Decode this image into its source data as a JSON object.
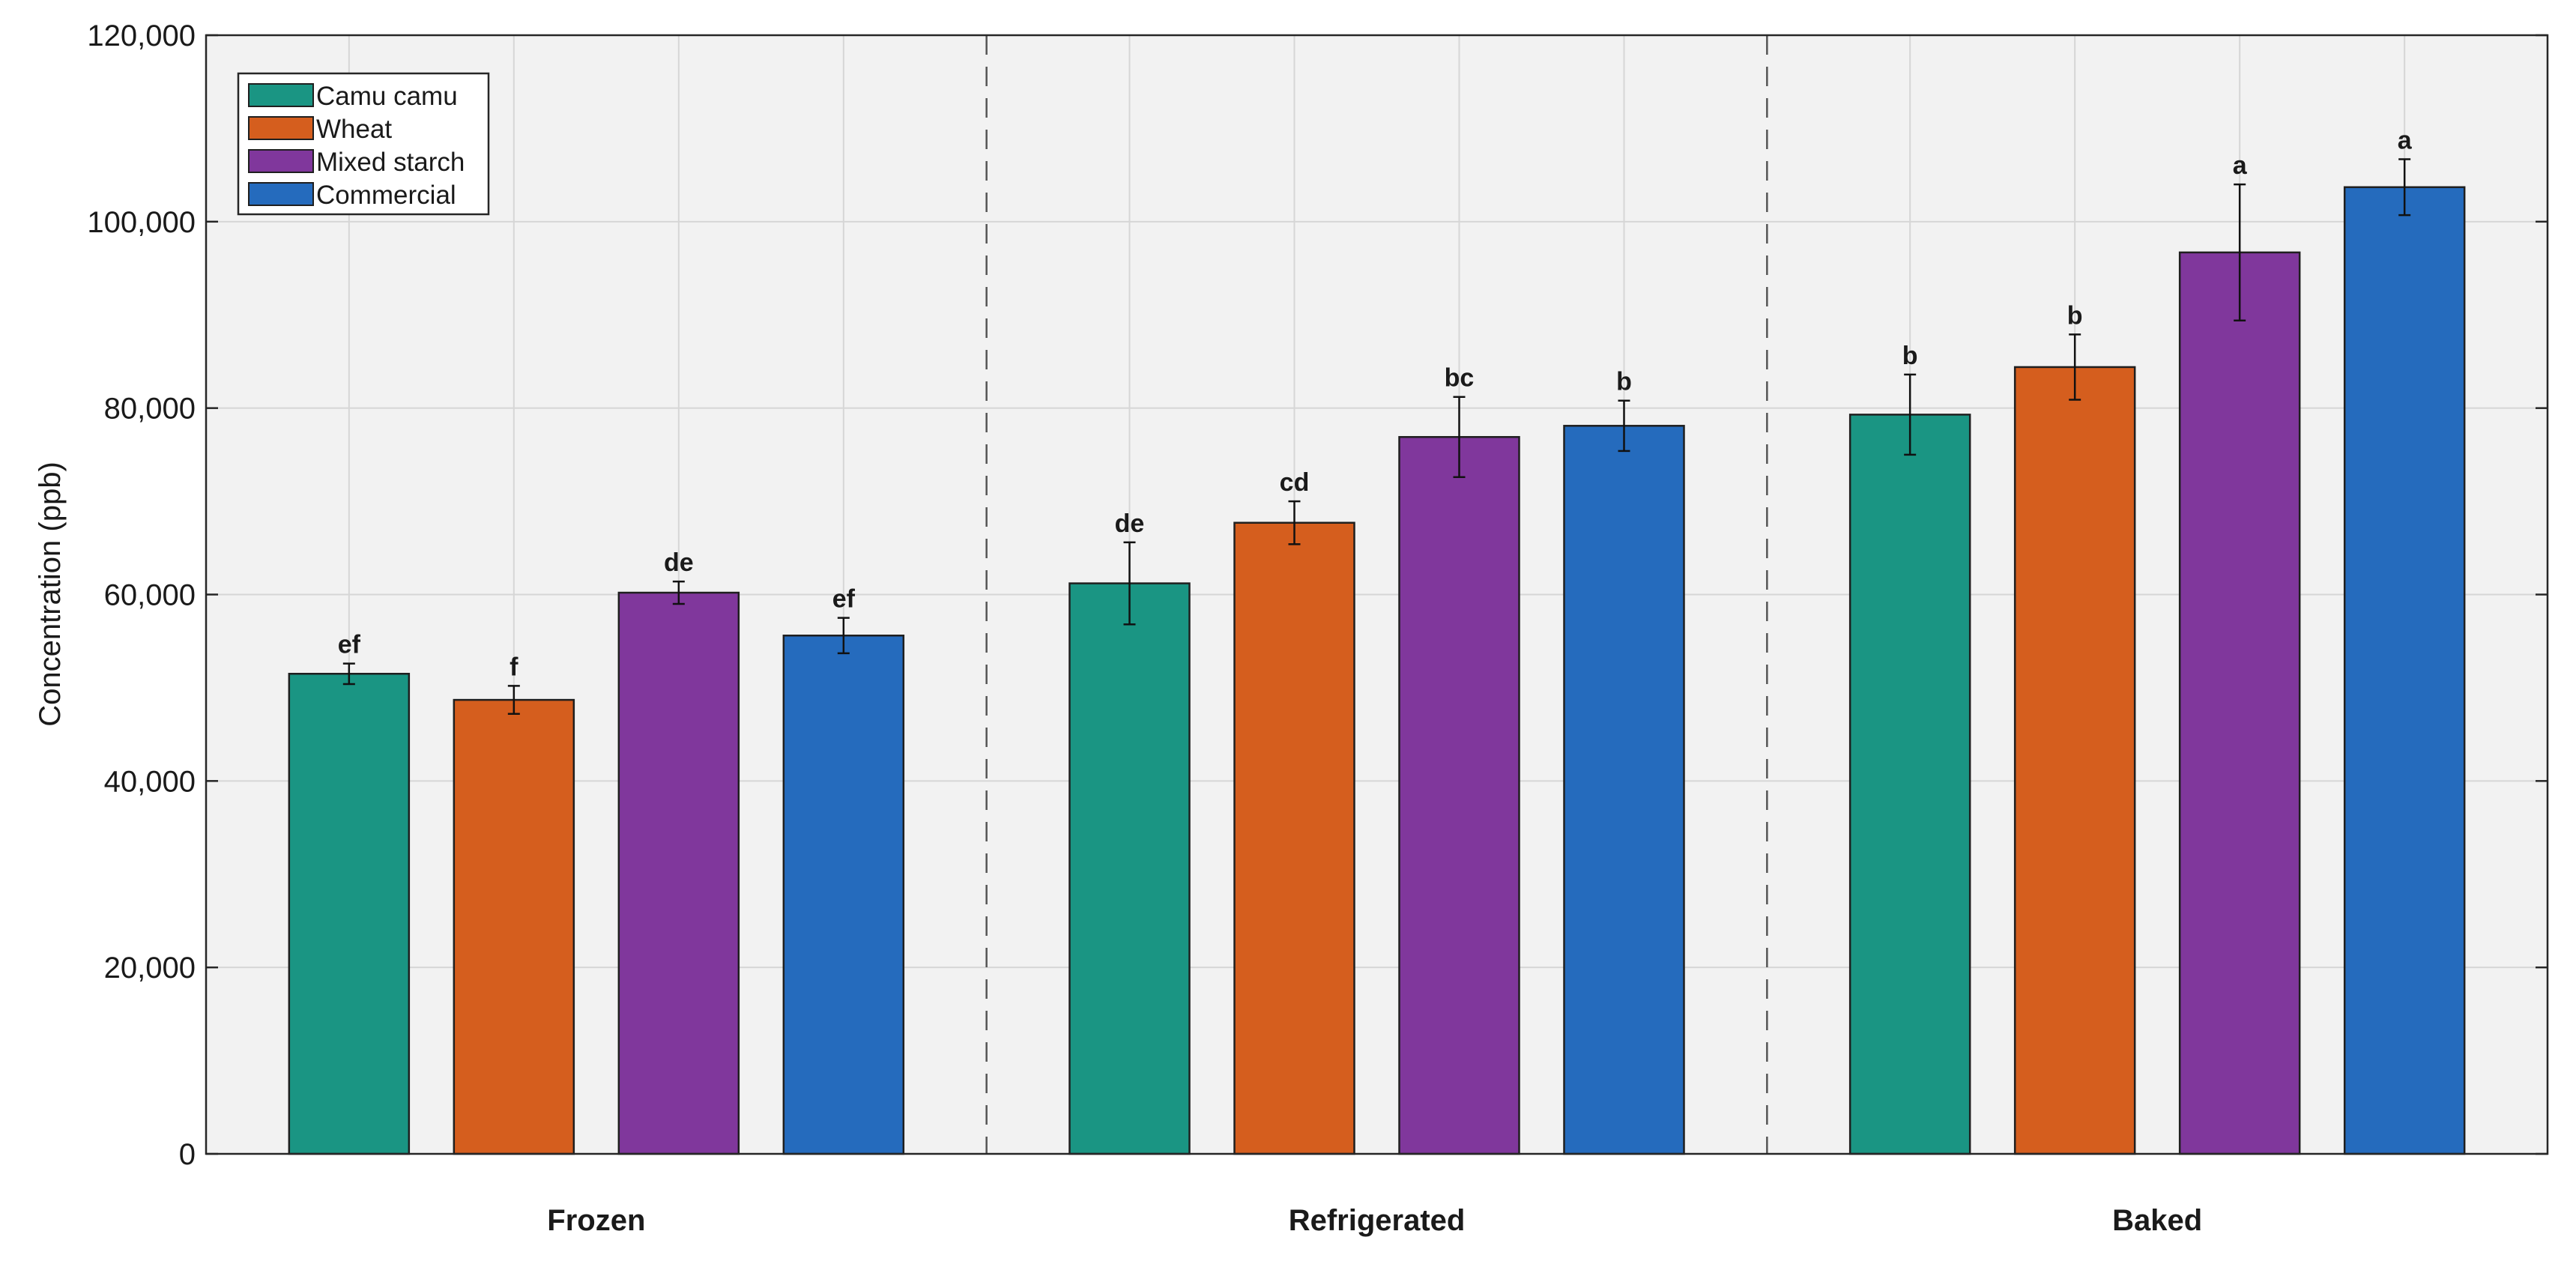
{
  "chart_data": {
    "type": "bar",
    "title": "",
    "xlabel": "",
    "ylabel": "Concentration (ppb)",
    "ylim": [
      0,
      120000
    ],
    "yticks": [
      0,
      20000,
      40000,
      60000,
      80000,
      100000,
      120000
    ],
    "ytick_labels": [
      "0",
      "20,000",
      "40,000",
      "60,000",
      "80,000",
      "100,000",
      "120,000"
    ],
    "grid": true,
    "legend_position": "top-left",
    "categories": [
      "Frozen",
      "Refrigerated",
      "Baked"
    ],
    "series": [
      {
        "name": "Camu camu",
        "color": "#1a9583",
        "values": [
          51500,
          61200,
          79300
        ],
        "errors": [
          1100,
          4400,
          4300
        ],
        "letters": [
          "ef",
          "de",
          "b"
        ]
      },
      {
        "name": "Wheat",
        "color": "#d55e1e",
        "values": [
          48700,
          67700,
          84400
        ],
        "errors": [
          1500,
          2300,
          3500
        ],
        "letters": [
          "f",
          "cd",
          "b"
        ]
      },
      {
        "name": "Mixed starch",
        "color": "#80379c",
        "values": [
          60200,
          76900,
          96700
        ],
        "errors": [
          1200,
          4300,
          7300
        ],
        "letters": [
          "de",
          "bc",
          "a"
        ]
      },
      {
        "name": "Commercial",
        "color": "#256bbd",
        "values": [
          55600,
          78100,
          103700
        ],
        "errors": [
          1900,
          2700,
          3000
        ],
        "letters": [
          "ef",
          "b",
          "a"
        ]
      }
    ]
  }
}
